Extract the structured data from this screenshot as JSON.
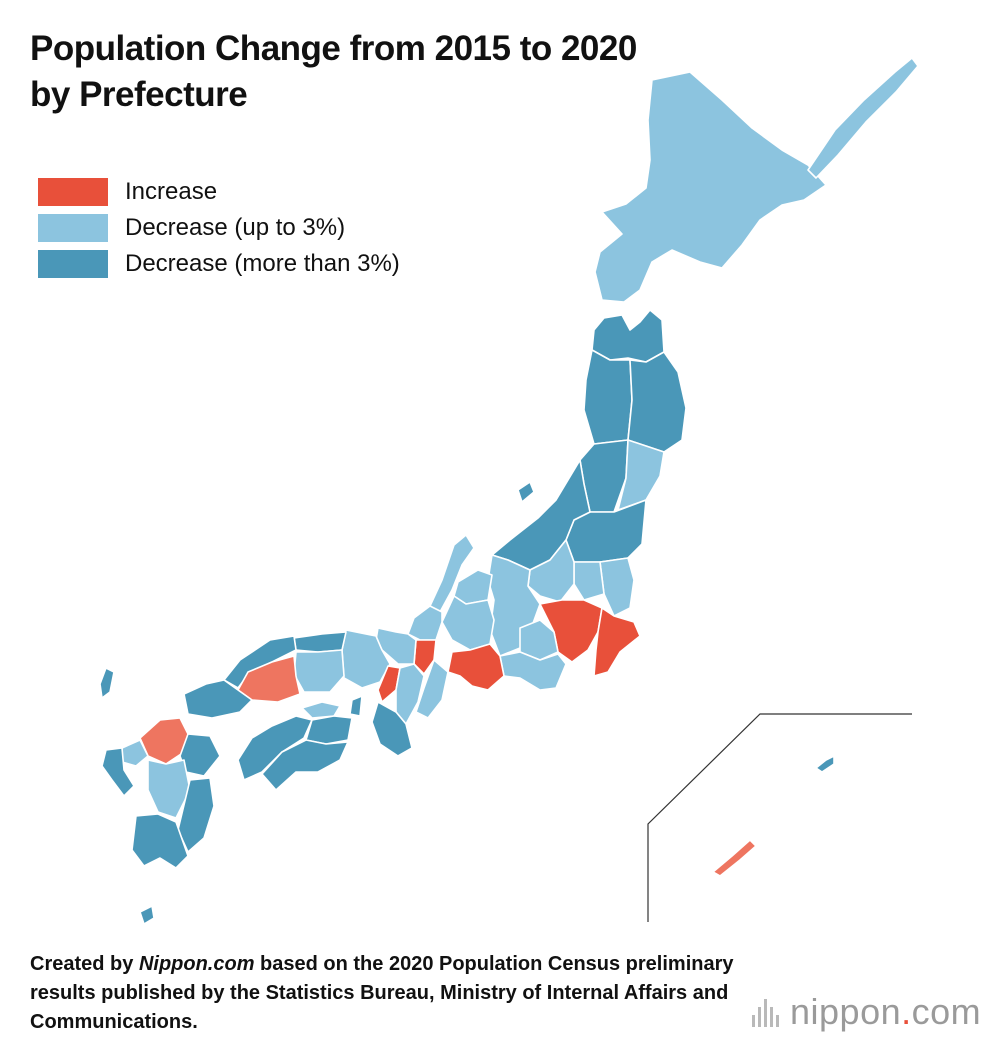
{
  "title_line1": "Population Change from 2015 to 2020",
  "title_line2": "by Prefecture",
  "legend": [
    {
      "label": "Increase",
      "color": "#e8503a"
    },
    {
      "label": "Decrease (up to 3%)",
      "color": "#8cc4df"
    },
    {
      "label": "Decrease (more than 3%)",
      "color": "#4a97b8"
    }
  ],
  "colors": {
    "increase": "#e8503a",
    "increase_light": "#ee7560",
    "decrease_small": "#8cc4df",
    "decrease_large": "#4a97b8",
    "border": "#ffffff",
    "inset_line": "#333333"
  },
  "source": {
    "prefix": "Created by ",
    "publisher": "Nippon.com",
    "rest": " based on the 2020 Population Census preliminary results published by the Statistics Bureau, Ministry of Internal Affairs and Communications."
  },
  "logo": {
    "name": "nippon",
    "dot": ".",
    "tld": "com",
    "icon": "bars-icon"
  }
}
